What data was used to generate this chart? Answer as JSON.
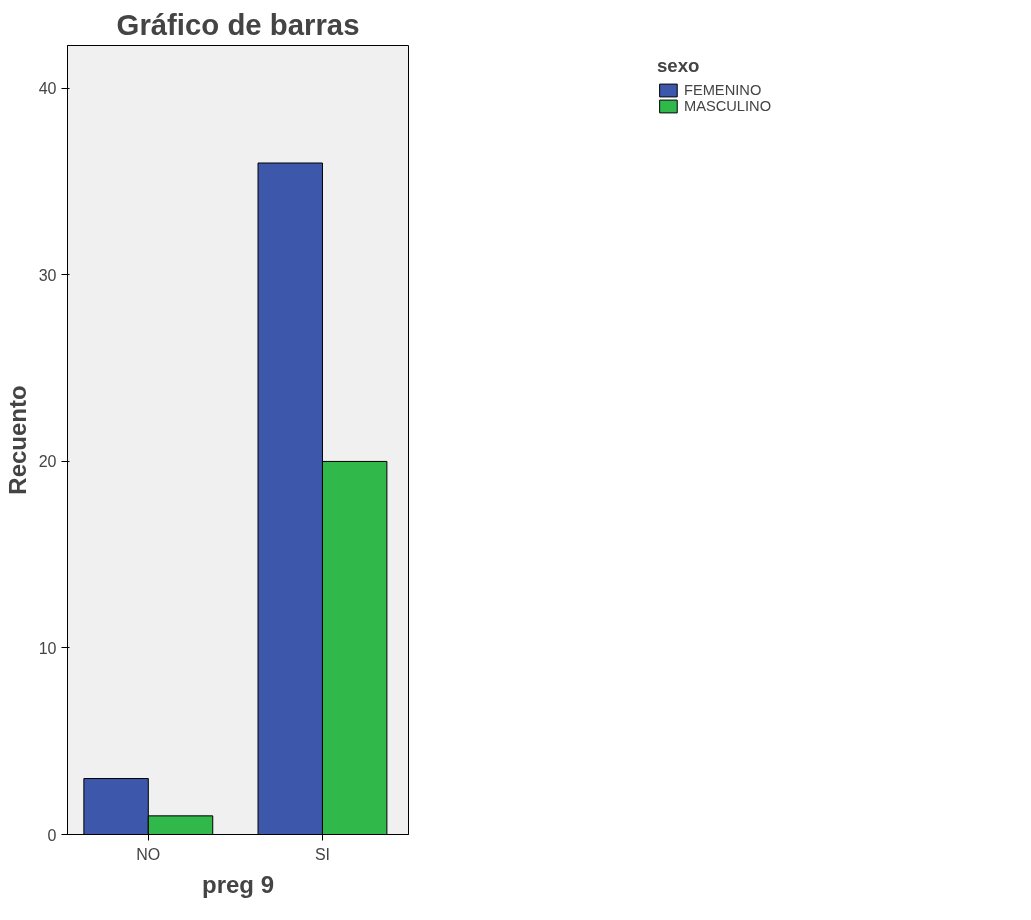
{
  "chart_data": {
    "type": "bar",
    "title": "Gráfico de barras",
    "xlabel": "preg 9",
    "ylabel": "Recuento",
    "legend_title": "sexo",
    "categories": [
      "NO",
      "SI"
    ],
    "series": [
      {
        "name": "FEMENINO",
        "color": "#3d57aa",
        "values": [
          3,
          36
        ]
      },
      {
        "name": "MASCULINO",
        "color": "#30b84a",
        "values": [
          1,
          20
        ]
      }
    ],
    "ylim": [
      0,
      42.3
    ],
    "yticks": [
      0,
      10,
      20,
      30,
      40
    ],
    "legend": "right"
  }
}
